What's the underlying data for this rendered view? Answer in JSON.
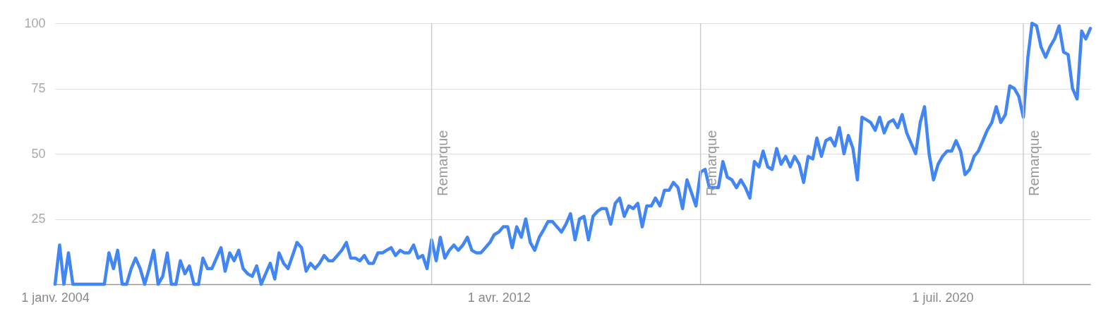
{
  "chart_data": {
    "type": "line",
    "xlim": [
      "2004-01",
      "2023-04"
    ],
    "xticks": [
      {
        "value": "2004-01-01",
        "label": "1 janv. 2004"
      },
      {
        "value": "2012-04-01",
        "label": "1 avr. 2012"
      },
      {
        "value": "2020-07-01",
        "label": "1 juil. 2020"
      }
    ],
    "ylim": [
      0,
      100
    ],
    "yticks": [
      {
        "value": 0,
        "label": null
      },
      25,
      50,
      75,
      100
    ],
    "grid": "y",
    "marker": "none",
    "line_style": "solid",
    "ref_lines": [
      {
        "axis": "x",
        "value": "2011-01",
        "label": "Remarque",
        "color": "#cccccc"
      },
      {
        "axis": "x",
        "value": "2016-01",
        "label": "Remarque",
        "color": "#cccccc"
      },
      {
        "axis": "x",
        "value": "2022-01",
        "label": "Remarque",
        "color": "#cccccc"
      }
    ],
    "x": [
      "2004-01",
      "2004-02",
      "2004-03",
      "2004-04",
      "2004-05",
      "2004-06",
      "2004-07",
      "2004-08",
      "2004-09",
      "2004-10",
      "2004-11",
      "2004-12",
      "2005-01",
      "2005-02",
      "2005-03",
      "2005-04",
      "2005-05",
      "2005-06",
      "2005-07",
      "2005-08",
      "2005-09",
      "2005-10",
      "2005-11",
      "2005-12",
      "2006-01",
      "2006-02",
      "2006-03",
      "2006-04",
      "2006-05",
      "2006-06",
      "2006-07",
      "2006-08",
      "2006-09",
      "2006-10",
      "2006-11",
      "2006-12",
      "2007-01",
      "2007-02",
      "2007-03",
      "2007-04",
      "2007-05",
      "2007-06",
      "2007-07",
      "2007-08",
      "2007-09",
      "2007-10",
      "2007-11",
      "2007-12",
      "2008-01",
      "2008-02",
      "2008-03",
      "2008-04",
      "2008-05",
      "2008-06",
      "2008-07",
      "2008-08",
      "2008-09",
      "2008-10",
      "2008-11",
      "2008-12",
      "2009-01",
      "2009-02",
      "2009-03",
      "2009-04",
      "2009-05",
      "2009-06",
      "2009-07",
      "2009-08",
      "2009-09",
      "2009-10",
      "2009-11",
      "2009-12",
      "2010-01",
      "2010-02",
      "2010-03",
      "2010-04",
      "2010-05",
      "2010-06",
      "2010-07",
      "2010-08",
      "2010-09",
      "2010-10",
      "2010-11",
      "2010-12",
      "2011-01",
      "2011-02",
      "2011-03",
      "2011-04",
      "2011-05",
      "2011-06",
      "2011-07",
      "2011-08",
      "2011-09",
      "2011-10",
      "2011-11",
      "2011-12",
      "2012-01",
      "2012-02",
      "2012-03",
      "2012-04",
      "2012-05",
      "2012-06",
      "2012-07",
      "2012-08",
      "2012-09",
      "2012-10",
      "2012-11",
      "2012-12",
      "2013-01",
      "2013-02",
      "2013-03",
      "2013-04",
      "2013-05",
      "2013-06",
      "2013-07",
      "2013-08",
      "2013-09",
      "2013-10",
      "2013-11",
      "2013-12",
      "2014-01",
      "2014-02",
      "2014-03",
      "2014-04",
      "2014-05",
      "2014-06",
      "2014-07",
      "2014-08",
      "2014-09",
      "2014-10",
      "2014-11",
      "2014-12",
      "2015-01",
      "2015-02",
      "2015-03",
      "2015-04",
      "2015-05",
      "2015-06",
      "2015-07",
      "2015-08",
      "2015-09",
      "2015-10",
      "2015-11",
      "2015-12",
      "2016-01",
      "2016-02",
      "2016-03",
      "2016-04",
      "2016-05",
      "2016-06",
      "2016-07",
      "2016-08",
      "2016-09",
      "2016-10",
      "2016-11",
      "2016-12",
      "2017-01",
      "2017-02",
      "2017-03",
      "2017-04",
      "2017-05",
      "2017-06",
      "2017-07",
      "2017-08",
      "2017-09",
      "2017-10",
      "2017-11",
      "2017-12",
      "2018-01",
      "2018-02",
      "2018-03",
      "2018-04",
      "2018-05",
      "2018-06",
      "2018-07",
      "2018-08",
      "2018-09",
      "2018-10",
      "2018-11",
      "2018-12",
      "2019-01",
      "2019-02",
      "2019-03",
      "2019-04",
      "2019-05",
      "2019-06",
      "2019-07",
      "2019-08",
      "2019-09",
      "2019-10",
      "2019-11",
      "2019-12",
      "2020-01",
      "2020-02",
      "2020-03",
      "2020-04",
      "2020-05",
      "2020-06",
      "2020-07",
      "2020-08",
      "2020-09",
      "2020-10",
      "2020-11",
      "2020-12",
      "2021-01",
      "2021-02",
      "2021-03",
      "2021-04",
      "2021-05",
      "2021-06",
      "2021-07",
      "2021-08",
      "2021-09",
      "2021-10",
      "2021-11",
      "2021-12",
      "2022-01",
      "2022-02",
      "2022-03",
      "2022-04",
      "2022-05",
      "2022-06",
      "2022-07",
      "2022-08",
      "2022-09",
      "2022-10",
      "2022-11",
      "2022-12",
      "2023-01",
      "2023-02",
      "2023-03",
      "2023-04"
    ],
    "series": [
      {
        "color": "#4285f4",
        "values": [
          0,
          15,
          0,
          12,
          0,
          0,
          0,
          0,
          0,
          0,
          0,
          0,
          12,
          6,
          13,
          0,
          0,
          6,
          10,
          6,
          0,
          6,
          13,
          0,
          3,
          12,
          0,
          0,
          9,
          4,
          7,
          0,
          0,
          10,
          6,
          6,
          10,
          14,
          5,
          12,
          9,
          13,
          6,
          4,
          3,
          7,
          0,
          4,
          8,
          2,
          12,
          8,
          6,
          11,
          16,
          14,
          5,
          8,
          6,
          8,
          11,
          9,
          9,
          11,
          13,
          16,
          10,
          10,
          9,
          11,
          8,
          8,
          12,
          12,
          13,
          14,
          11,
          13,
          12,
          12,
          15,
          10,
          11,
          6,
          17,
          9,
          18,
          10,
          13,
          15,
          13,
          15,
          18,
          13,
          12,
          12,
          14,
          16,
          19,
          20,
          22,
          22,
          14,
          22,
          18,
          25,
          16,
          13,
          18,
          21,
          24,
          24,
          22,
          20,
          23,
          27,
          17,
          25,
          26,
          17,
          26,
          28,
          29,
          29,
          23,
          31,
          33,
          26,
          30,
          29,
          31,
          22,
          30,
          30,
          33,
          30,
          36,
          36,
          39,
          37,
          29,
          40,
          35,
          30,
          43,
          44,
          37,
          37,
          37,
          47,
          41,
          40,
          37,
          40,
          37,
          33,
          47,
          45,
          51,
          45,
          44,
          52,
          46,
          49,
          45,
          49,
          46,
          39,
          49,
          48,
          56,
          49,
          55,
          56,
          53,
          60,
          50,
          57,
          52,
          40,
          64,
          63,
          62,
          59,
          64,
          58,
          62,
          63,
          60,
          65,
          58,
          54,
          50,
          62,
          68,
          50,
          40,
          46,
          49,
          51,
          51,
          55,
          51,
          42,
          44,
          49,
          51,
          55,
          59,
          62,
          68,
          62,
          65,
          76,
          75,
          72,
          64,
          87,
          100,
          99,
          91,
          87,
          91,
          94,
          99,
          89,
          88,
          75,
          71,
          97,
          94,
          98
        ]
      }
    ]
  }
}
